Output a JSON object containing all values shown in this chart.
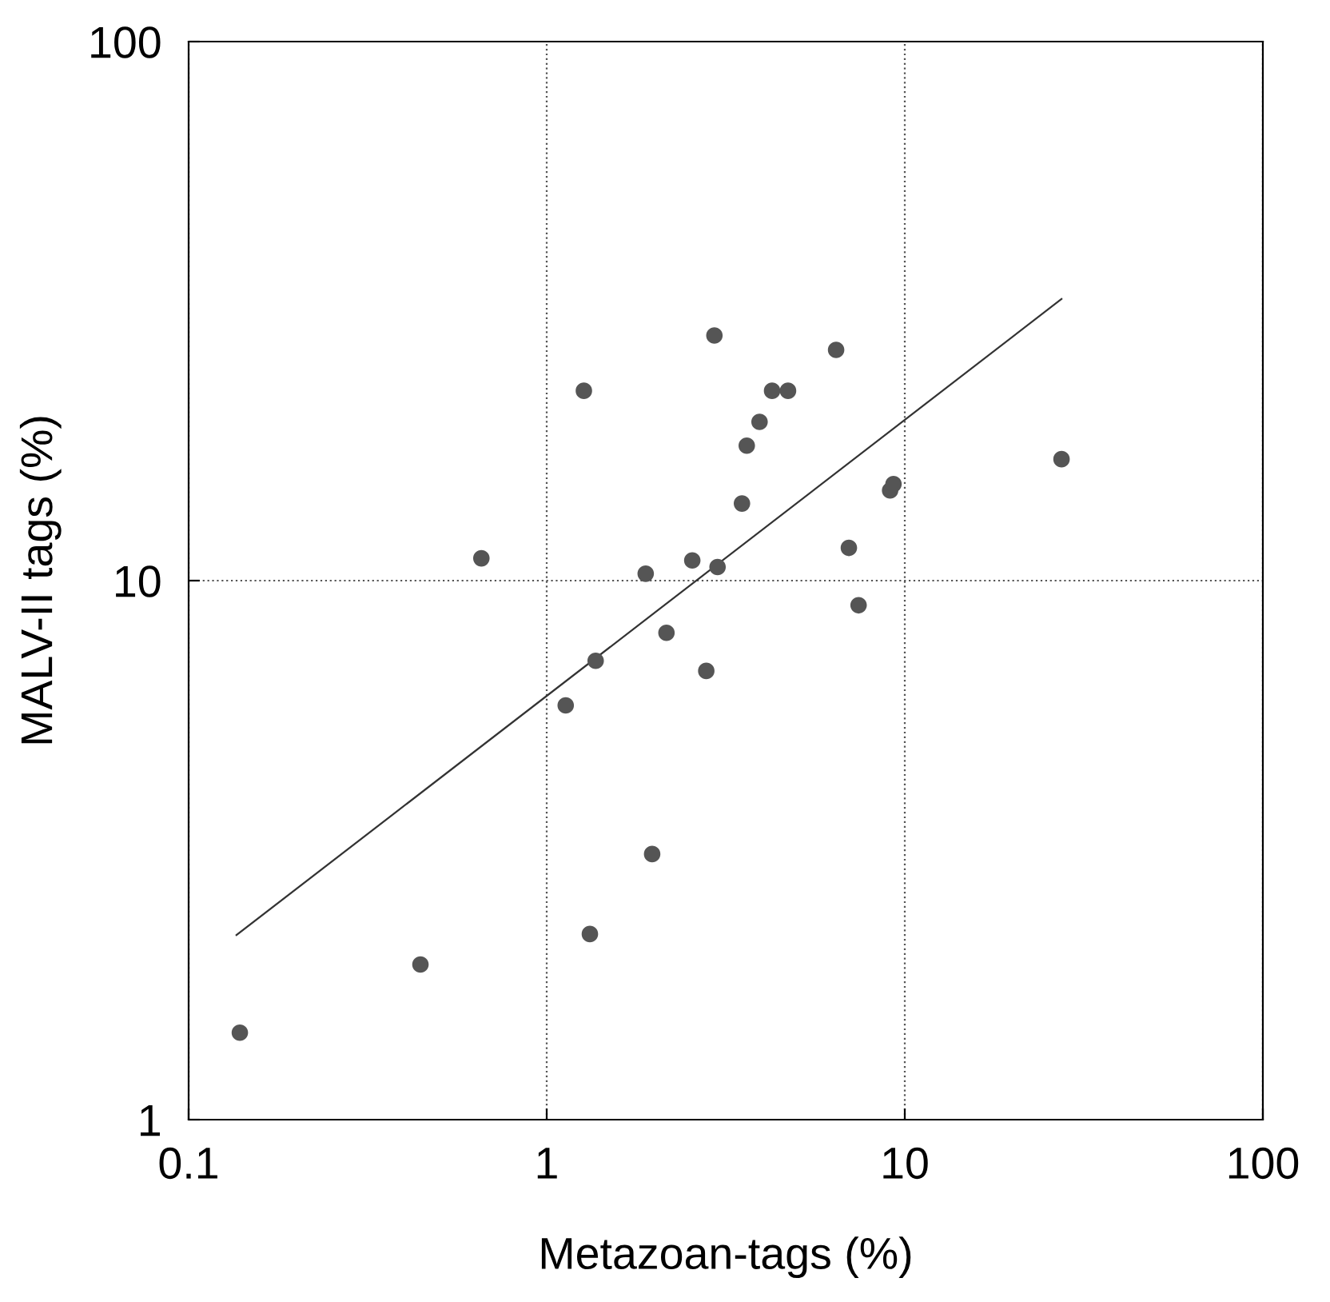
{
  "chart_data": {
    "type": "scatter",
    "xlabel": "Metazoan-tags (%)",
    "ylabel": "MALV-II tags (%)",
    "log": "xy",
    "grid": true,
    "xlim": [
      0.1,
      100
    ],
    "ylim": [
      1,
      100
    ],
    "xticks": [
      0.1,
      1,
      10,
      100
    ],
    "yticks": [
      1,
      10,
      100
    ],
    "series": [
      {
        "color": "#555555",
        "marker": "circle",
        "x": [
          0.139,
          0.444,
          0.657,
          1.13,
          1.32,
          1.27,
          1.37,
          1.89,
          1.97,
          2.16,
          2.55,
          2.79,
          3.0,
          2.94,
          3.51,
          3.62,
          3.93,
          4.26,
          4.72,
          6.43,
          6.98,
          7.43,
          9.1,
          9.3,
          27.4
        ],
        "values": [
          1.45,
          1.94,
          11.0,
          5.87,
          2.21,
          22.5,
          7.1,
          10.3,
          3.11,
          8.0,
          10.9,
          6.8,
          10.6,
          28.5,
          13.9,
          17.8,
          19.7,
          22.5,
          22.5,
          26.8,
          11.5,
          9.0,
          14.7,
          15.1,
          16.8
        ]
      },
      {
        "type": "line",
        "color": "#333333",
        "marker": "none",
        "line_style": "solid",
        "x": [
          0.136,
          27.4
        ],
        "values": [
          2.2,
          33.3
        ]
      }
    ]
  }
}
